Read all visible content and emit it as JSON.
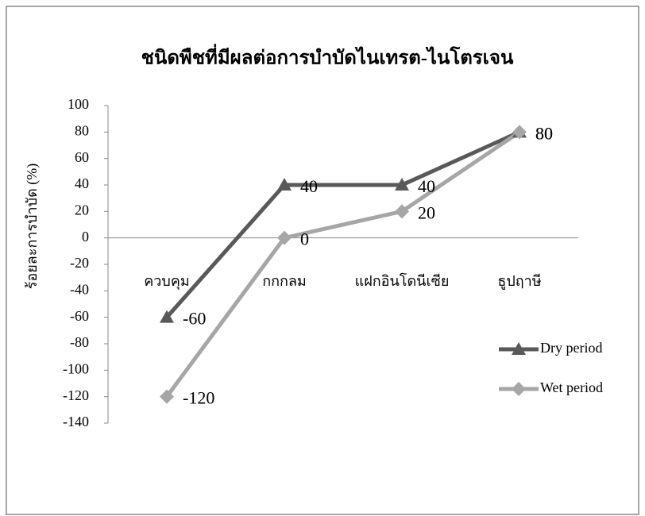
{
  "chart_data": {
    "type": "line",
    "title": "ชนิดพืชที่มีผลต่อการบำบัดไนเทรต-ไนโตรเจน",
    "y_label": "ร้อยละการบำบัด (%)",
    "categories": [
      "ควบคุม",
      "กกกลม",
      "แฝกอินโดนีเซีย",
      "ธูปฤาษี"
    ],
    "series": [
      {
        "name": "Dry period",
        "color": "#595959",
        "marker": "triangle",
        "values": [
          -60,
          40,
          40,
          80
        ]
      },
      {
        "name": "Wet period",
        "color": "#a6a6a6",
        "marker": "diamond",
        "values": [
          -120,
          0,
          20,
          80
        ]
      }
    ],
    "ylim": [
      -140,
      100
    ],
    "yticks": [
      -140,
      -120,
      -100,
      -80,
      -60,
      -40,
      -20,
      0,
      20,
      40,
      60,
      80,
      100
    ],
    "grid": false,
    "legend": "right"
  }
}
